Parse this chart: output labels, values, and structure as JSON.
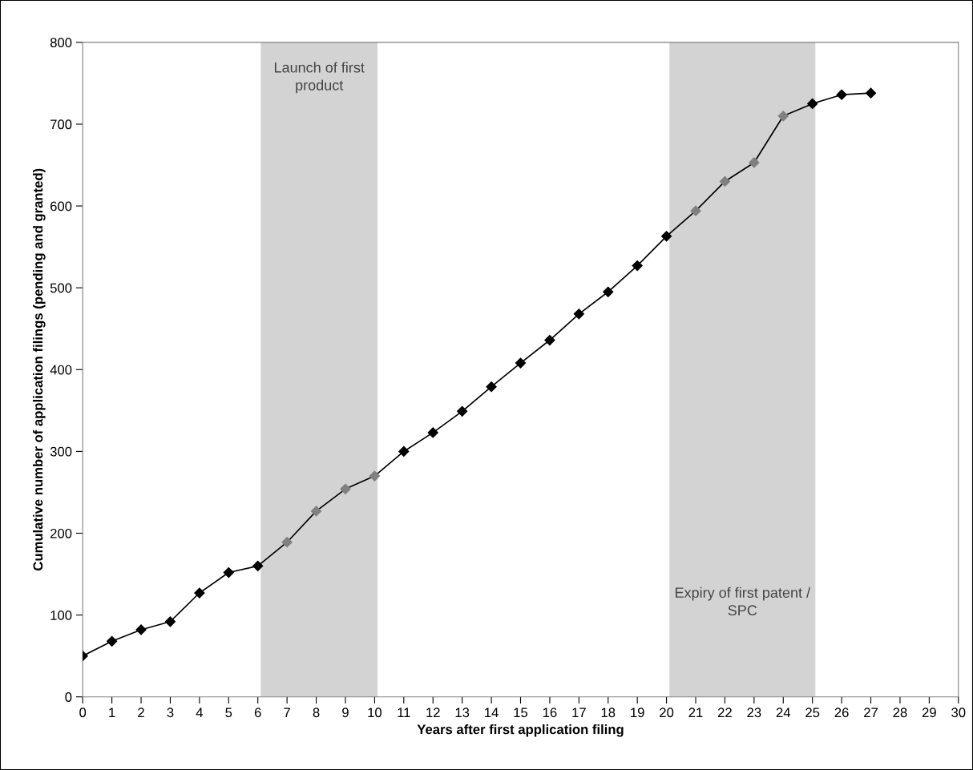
{
  "chart_data": {
    "type": "line",
    "xlabel": "Years after first application filing",
    "ylabel": "Cumulative number of application filings (pending and granted)",
    "x": [
      0,
      1,
      2,
      3,
      4,
      5,
      6,
      7,
      8,
      9,
      10,
      11,
      12,
      13,
      14,
      15,
      16,
      17,
      18,
      19,
      20,
      21,
      22,
      23,
      24,
      25,
      26,
      27
    ],
    "series": [
      {
        "color": "#000000",
        "colors": [
          "#000000",
          "#000000",
          "#000000",
          "#000000",
          "#000000",
          "#000000",
          "#000000",
          "#808080",
          "#808080",
          "#808080",
          "#808080",
          "#000000",
          "#000000",
          "#000000",
          "#000000",
          "#000000",
          "#000000",
          "#000000",
          "#000000",
          "#000000",
          "#000000",
          "#808080",
          "#808080",
          "#808080",
          "#808080",
          "#000000",
          "#000000",
          "#000000"
        ],
        "values": [
          50,
          68,
          82,
          92,
          127,
          152,
          160,
          189,
          227,
          254,
          270,
          300,
          323,
          349,
          379,
          408,
          436,
          468,
          495,
          527,
          563,
          594,
          630,
          653,
          710,
          725,
          736,
          738
        ]
      }
    ],
    "xlim": [
      0,
      30
    ],
    "xticks": [
      0,
      1,
      2,
      3,
      4,
      5,
      6,
      7,
      8,
      9,
      10,
      11,
      12,
      13,
      14,
      15,
      16,
      17,
      18,
      19,
      20,
      21,
      22,
      23,
      24,
      25,
      26,
      27,
      28,
      29,
      30
    ],
    "ylim": [
      0,
      800
    ],
    "yticks": [
      0,
      100,
      200,
      300,
      400,
      500,
      600,
      700,
      800
    ],
    "bands": [
      {
        "axis": "x",
        "from": 6.1,
        "to": 10.1,
        "label": "Launch of first\nproduct",
        "color": "#d3d3d3"
      },
      {
        "axis": "x",
        "from": 20.1,
        "to": 25.1,
        "label": "Expiry of first patent /\nSPC",
        "color": "#d3d3d3"
      }
    ],
    "grid": false,
    "legend": false,
    "marker": "diamond",
    "line_style": "solid"
  }
}
